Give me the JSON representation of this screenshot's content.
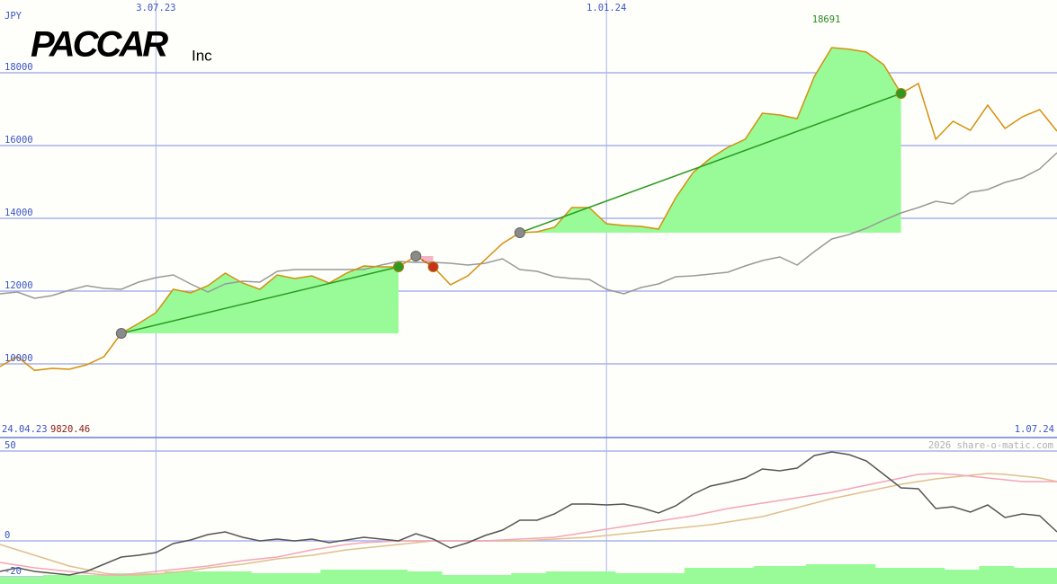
{
  "chart_data": [
    {
      "type": "line",
      "title": "PACCAR",
      "subtitle": "Inc",
      "unit": "JPY",
      "credit": "2026 share-o-matic.com",
      "categories": [
        "24.04.23",
        null,
        null,
        null,
        null,
        null,
        null,
        null,
        null,
        "3.07.23",
        null,
        null,
        null,
        null,
        null,
        null,
        null,
        null,
        null,
        null,
        null,
        null,
        null,
        null,
        null,
        null,
        null,
        null,
        null,
        null,
        null,
        null,
        null,
        null,
        null,
        "1.01.24",
        null,
        null,
        null,
        null,
        null,
        null,
        null,
        null,
        null,
        null,
        null,
        null,
        null,
        null,
        null,
        null,
        null,
        null,
        null,
        null,
        null,
        null,
        null,
        null,
        null,
        "1.07.24"
      ],
      "series": [
        {
          "color": "#999999",
          "values": [
            11926,
            11975,
            11802,
            11877,
            12025,
            12148,
            12074,
            12049,
            12247,
            12370,
            12444,
            12198,
            11975,
            12198,
            12272,
            12247,
            12543,
            12593,
            12593,
            12593,
            12593,
            12593,
            12716,
            12815,
            12790,
            12790,
            12765,
            12716,
            12765,
            12889,
            12593,
            12543,
            12395,
            12346,
            12321,
            12049,
            11926,
            12099,
            12198,
            12395,
            12420,
            12469,
            12518,
            12691,
            12840,
            12938,
            12716,
            13086,
            13432,
            13556,
            13728,
            13951,
            14148,
            14296,
            14469,
            14395,
            14716,
            14790,
            14988,
            15111,
            15358,
            15802
          ]
        },
        {
          "color": "#d4900e",
          "values": [
            9926,
            10198,
            9820.46,
            9877,
            9852,
            9975,
            10198,
            10840,
            11111,
            11407,
            12049,
            11951,
            12148,
            12494,
            12222,
            12049,
            12444,
            12346,
            12420,
            12222,
            12494,
            12691,
            12667,
            12667,
            12963,
            12667,
            12173,
            12420,
            12864,
            13309,
            13605,
            13630,
            13753,
            14296,
            14296,
            13852,
            13802,
            13778,
            13704,
            14568,
            15259,
            15654,
            15951,
            16173,
            16889,
            16840,
            16741,
            17901,
            18691,
            18650,
            18568,
            18222,
            17432,
            17704,
            16173,
            16667,
            16420,
            17111,
            16469,
            16790,
            16988,
            16395
          ]
        }
      ],
      "trades": [
        {
          "x": [
            7,
            23
          ],
          "values": [
            10840,
            12667
          ],
          "fill": "#98fb98",
          "color": "#2a9a20"
        },
        {
          "x": [
            30,
            52
          ],
          "values": [
            13605,
            17432
          ],
          "fill": "#98fb98",
          "color": "#2a9a20"
        },
        {
          "x": [
            24,
            25
          ],
          "values": [
            12963,
            12667
          ],
          "fill": "#f6b3c2",
          "color": "#c8321a"
        }
      ],
      "annotations": [
        {
          "value": 18691,
          "x": 48,
          "color": "#2a8a20",
          "position": "top"
        },
        {
          "value": 9820.46,
          "x": 2,
          "color": "#8b1a10",
          "position": "bottom"
        }
      ],
      "ylim": [
        7975,
        20000
      ],
      "yticks": [
        10000,
        12000,
        14000,
        16000,
        18000
      ],
      "grid": true
    },
    {
      "type": "line",
      "series": [
        {
          "type": "bar",
          "color": "#98fb98",
          "values": [
            -20,
            -20,
            -20,
            -19,
            -19,
            -19,
            -19,
            -18,
            -18,
            -18,
            -17,
            -17,
            -17,
            -17,
            -17,
            -18,
            -18,
            -18,
            -18,
            -16,
            -16,
            -16,
            -16,
            -16,
            -17,
            -17,
            -19,
            -19,
            -19,
            -19,
            -18,
            -18,
            -17,
            -17,
            -17,
            -17,
            -18,
            -18,
            -18,
            -18,
            -15,
            -15,
            -15,
            -15,
            -14,
            -14,
            -14,
            -13,
            -13,
            -13,
            -13,
            -15,
            -15,
            -15,
            -15,
            -16,
            -16,
            -14,
            -14,
            -15,
            -15,
            -15
          ]
        },
        {
          "color": "#dfc08f",
          "values": [
            -2,
            -5,
            -8,
            -11,
            -14,
            -16,
            -18,
            -19,
            -19,
            -18.5,
            -17.5,
            -16.5,
            -15,
            -14,
            -13,
            -11.5,
            -10,
            -9,
            -8,
            -6.5,
            -5,
            -4,
            -3,
            -2,
            -1,
            0,
            0,
            0,
            0,
            0,
            0,
            0.5,
            1,
            1.5,
            2,
            3,
            4,
            5,
            6,
            7,
            8,
            9,
            10.5,
            12,
            13.5,
            16,
            18.5,
            21,
            23.5,
            25.5,
            27.5,
            29.5,
            31.5,
            33,
            34.5,
            35.5,
            36.5,
            37.5,
            37,
            36,
            35,
            33
          ]
        },
        {
          "color": "#f4a6b8",
          "values": [
            -12,
            -13.5,
            -15,
            -16,
            -17,
            -18,
            -19,
            -19,
            -18,
            -17,
            -16,
            -15,
            -14,
            -12.5,
            -11,
            -10,
            -9,
            -7,
            -5,
            -3.5,
            -2,
            -1,
            -0.5,
            0,
            0,
            0,
            0,
            0,
            0,
            0.5,
            1,
            1.5,
            2,
            3.5,
            5,
            6.5,
            8,
            9.5,
            11,
            12.5,
            14,
            16,
            18,
            19.5,
            21,
            22.5,
            24,
            25.5,
            27,
            29,
            31,
            33,
            35,
            37,
            37.5,
            37,
            36,
            35,
            34,
            33,
            33,
            33
          ]
        },
        {
          "color": "#555555",
          "values": [
            -17,
            -15,
            -17,
            -18,
            -19,
            -17,
            -13,
            -9,
            -8,
            -6.5,
            -1.5,
            0.5,
            3.5,
            5,
            2,
            0,
            1,
            0,
            1,
            -1,
            0.5,
            2,
            1,
            0,
            4,
            1,
            -4,
            -1,
            3,
            6,
            11.5,
            11.5,
            15,
            20.5,
            20.5,
            20,
            20.5,
            18.5,
            15.5,
            19.5,
            26,
            30.5,
            32.5,
            35,
            40,
            39,
            40.5,
            47.5,
            49.5,
            48,
            44.5,
            37,
            29.5,
            29,
            18,
            19,
            16,
            20,
            13,
            15,
            14,
            5
          ]
        }
      ],
      "ylim": [
        -24,
        57.5
      ],
      "yticks": [
        -20,
        0,
        50
      ],
      "grid": true
    }
  ]
}
